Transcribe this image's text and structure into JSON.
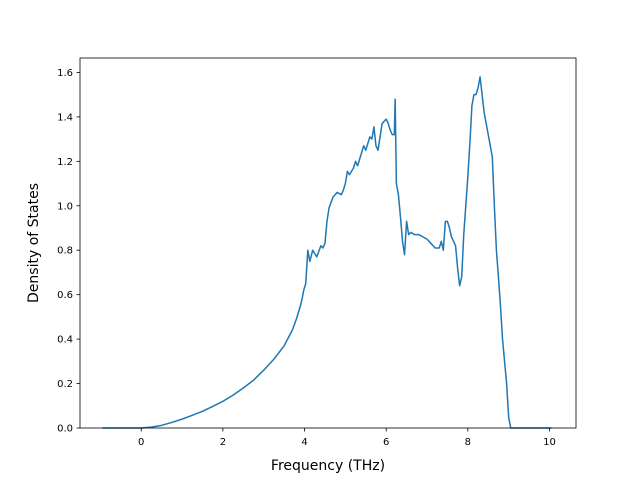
{
  "chart_data": {
    "type": "line",
    "title": "",
    "xlabel": "Frequency (THz)",
    "ylabel": "Density of States",
    "xlim": [
      -1.5,
      10.65
    ],
    "ylim": [
      0.0,
      1.665
    ],
    "xticks": [
      0,
      2,
      4,
      6,
      8,
      10
    ],
    "yticks": [
      0.0,
      0.2,
      0.4,
      0.6,
      0.8,
      1.0,
      1.2,
      1.4,
      1.6
    ],
    "xtick_labels": [
      "0",
      "2",
      "4",
      "6",
      "8",
      "10"
    ],
    "ytick_labels": [
      "0.0",
      "0.2",
      "0.4",
      "0.6",
      "0.8",
      "1.0",
      "1.2",
      "1.4",
      "1.6"
    ],
    "grid": false,
    "legend": "none",
    "series": [
      {
        "color": "#1f77b4",
        "x": [
          -0.95,
          -0.5,
          0.0,
          0.25,
          0.5,
          0.75,
          1.0,
          1.25,
          1.5,
          1.75,
          2.0,
          2.25,
          2.5,
          2.75,
          3.0,
          3.25,
          3.5,
          3.7,
          3.8,
          3.9,
          3.95,
          3.98,
          4.03,
          4.08,
          4.13,
          4.2,
          4.3,
          4.4,
          4.45,
          4.5,
          4.55,
          4.6,
          4.7,
          4.8,
          4.9,
          4.95,
          5.0,
          5.05,
          5.1,
          5.2,
          5.25,
          5.3,
          5.35,
          5.4,
          5.45,
          5.5,
          5.55,
          5.6,
          5.65,
          5.7,
          5.75,
          5.8,
          5.9,
          6.0,
          6.05,
          6.1,
          6.15,
          6.2,
          6.22,
          6.25,
          6.3,
          6.35,
          6.4,
          6.45,
          6.5,
          6.55,
          6.6,
          6.7,
          6.8,
          6.9,
          7.0,
          7.1,
          7.2,
          7.3,
          7.35,
          7.4,
          7.45,
          7.5,
          7.55,
          7.6,
          7.65,
          7.7,
          7.75,
          7.8,
          7.85,
          7.9,
          7.95,
          8.0,
          8.05,
          8.1,
          8.15,
          8.2,
          8.25,
          8.3,
          8.35,
          8.4,
          8.45,
          8.5,
          8.55,
          8.6,
          8.65,
          8.7,
          8.75,
          8.8,
          8.85,
          8.9,
          8.95,
          9.0,
          9.05,
          9.1,
          9.15,
          9.2,
          9.5,
          10.05
        ],
        "y": [
          0.0,
          0.0,
          0.0,
          0.004,
          0.012,
          0.025,
          0.04,
          0.057,
          0.075,
          0.097,
          0.12,
          0.148,
          0.18,
          0.215,
          0.26,
          0.31,
          0.37,
          0.44,
          0.49,
          0.55,
          0.59,
          0.62,
          0.65,
          0.8,
          0.75,
          0.8,
          0.77,
          0.82,
          0.81,
          0.83,
          0.93,
          0.99,
          1.04,
          1.06,
          1.05,
          1.07,
          1.1,
          1.155,
          1.14,
          1.17,
          1.2,
          1.18,
          1.21,
          1.24,
          1.27,
          1.25,
          1.28,
          1.31,
          1.3,
          1.355,
          1.27,
          1.25,
          1.37,
          1.39,
          1.37,
          1.34,
          1.32,
          1.32,
          1.48,
          1.1,
          1.05,
          0.95,
          0.84,
          0.78,
          0.93,
          0.87,
          0.88,
          0.87,
          0.87,
          0.86,
          0.85,
          0.83,
          0.81,
          0.81,
          0.84,
          0.8,
          0.93,
          0.93,
          0.9,
          0.86,
          0.84,
          0.82,
          0.72,
          0.64,
          0.68,
          0.87,
          1.0,
          1.13,
          1.28,
          1.45,
          1.5,
          1.5,
          1.53,
          1.58,
          1.5,
          1.42,
          1.37,
          1.32,
          1.27,
          1.22,
          1.0,
          0.8,
          0.68,
          0.55,
          0.4,
          0.3,
          0.2,
          0.05,
          0.0,
          0.0,
          0.0,
          0.0,
          0.0,
          0.0
        ]
      }
    ]
  }
}
